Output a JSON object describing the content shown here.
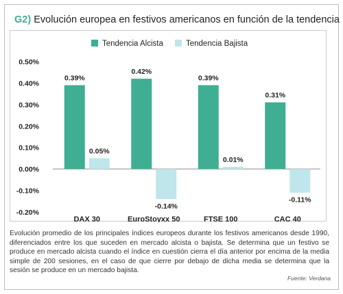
{
  "header": {
    "tag": "G2)",
    "title": "Evolución europea en festivos americanos en función de la tendencia"
  },
  "chart_data": {
    "type": "bar",
    "categories": [
      "DAX 30",
      "EuroStoyxx 50",
      "FTSE 100",
      "CAC 40"
    ],
    "series": [
      {
        "name": "Tendencia Alcista",
        "values": [
          0.39,
          0.42,
          0.39,
          0.31
        ],
        "labels": [
          "0.39%",
          "0.42%",
          "0.39%",
          "0.31%"
        ],
        "color": "#3fae92"
      },
      {
        "name": "Tendencia Bajista",
        "values": [
          0.05,
          -0.14,
          0.01,
          -0.11
        ],
        "labels": [
          "0.05%",
          "-0.14%",
          "0.01%",
          "-0.11%"
        ],
        "color": "#bfe6ea"
      }
    ],
    "yticks": [
      0.5,
      0.4,
      0.3,
      0.2,
      0.1,
      0.0,
      -0.1,
      -0.2
    ],
    "ytick_labels": [
      "0.50%",
      "0.40%",
      "0.30%",
      "0.20%",
      "0.10%",
      "0.00%",
      "-0.10%",
      "-0.20%"
    ],
    "ylim": [
      -0.2,
      0.5
    ],
    "legend_position": "top-center",
    "grid": false
  },
  "caption": "Evolución promedio de los principales índices europeos durante los festivos americanos desde 1990, diferenciados entre los que suceden en mercado alcista o bajista. Se determina que un festivo se produce en mercado alcista cuando el índice en cuestión cierra el día anterior por encima de la media simple de 200 sesiones, en el caso de que cierre por debajo de dicha media se determina que la sesión se produce en un mercado bajista.",
  "source": "Fuente: Verdana"
}
